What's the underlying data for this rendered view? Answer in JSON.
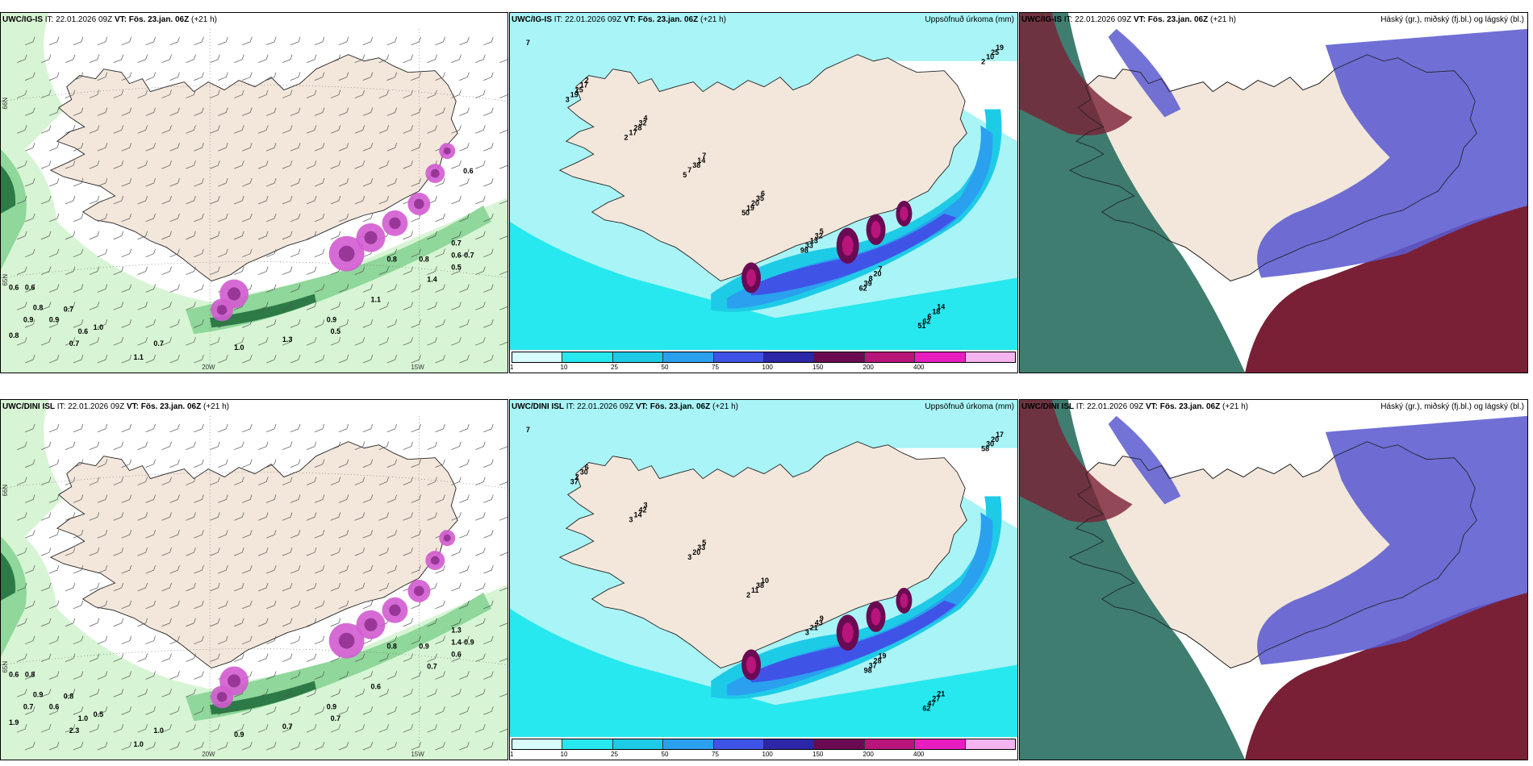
{
  "panels": {
    "r1c1": {
      "model": "UWC/IG-IS",
      "it": "IT: 22.01.2026 09Z",
      "vt_label": "VT:",
      "vt": "Fös. 23.jan. 06Z",
      "lead": "(+21 h)",
      "right": ""
    },
    "r1c2": {
      "model": "UWC/IG-IS",
      "it": "IT: 22.01.2026 09Z",
      "vt_label": "VT:",
      "vt": "Fös. 23.jan. 06Z",
      "lead": "(+21 h)",
      "right": "Uppsöfnuð úrkoma (mm)"
    },
    "r1c3": {
      "model": "UWC/IG-IS",
      "it": "IT: 22.01.2026 09Z",
      "vt_label": "VT:",
      "vt": "Fös. 23.jan. 06Z",
      "lead": "(+21 h)",
      "right": "Háský (gr.), miðský (fj.bl.) og lágský (bl.)"
    },
    "r2c1": {
      "model": "UWC/DINI ISL",
      "it": "IT: 22.01.2026 09Z",
      "vt_label": "VT:",
      "vt": "Fös. 23.jan. 06Z",
      "lead": "(+21 h)",
      "right": ""
    },
    "r2c2": {
      "model": "UWC/DINI ISL",
      "it": "IT: 22.01.2026 09Z",
      "vt_label": "VT:",
      "vt": "Fös. 23.jan. 06Z",
      "lead": "(+21 h)",
      "right": "Uppsöfnuð úrkoma (mm)"
    },
    "r2c3": {
      "model": "UWC/DINI ISL",
      "it": "IT: 22.01.2026 09Z",
      "vt_label": "VT:",
      "vt": "Fös. 23.jan. 06Z",
      "lead": "(+21 h)",
      "right": "Háský (gr.), miðský (fj.bl.) og lágský (bl.)"
    }
  },
  "axis_labels": {
    "lon1": "20W",
    "lon2": "15W",
    "lat1": "66N",
    "lat2": "65N"
  },
  "colorbar": {
    "ticks": [
      "1",
      "10",
      "25",
      "50",
      "75",
      "100",
      "150",
      "200",
      "400"
    ],
    "colors": [
      "#d8fbfb",
      "#27e8ee",
      "#1ecbe7",
      "#2aa0ef",
      "#3f54e6",
      "#2b27a6",
      "#6a0a52",
      "#b8157a",
      "#e81dc0",
      "#f4b4ef"
    ]
  },
  "colors": {
    "land": "#f3e7dc",
    "wind_green_light": "#d7f5d4",
    "wind_green_mid": "#8fd79a",
    "wind_green_dark": "#2d7a47",
    "snow_magenta": "#d35bd0",
    "precip_cyan": "#a9f4f6",
    "cloud_high": "#2a6f62",
    "cloud_mid": "#5b5bd0",
    "cloud_low": "#7a2036"
  },
  "wind_values": {
    "r1": [
      "0.6",
      "0.6",
      "0.8",
      "0.7",
      "0.9",
      "0.9",
      "0.6",
      "1.0",
      "0.8",
      "0.7",
      "1.1",
      "0.7",
      "0.5",
      "0.9",
      "0.7",
      "0.6",
      "0.7",
      "1.4",
      "1.1",
      "0.8",
      "1.0",
      "1.3",
      "0.5",
      "0.8",
      "0.6"
    ],
    "r2": [
      "0.6",
      "0.8",
      "0.9",
      "0.8",
      "0.7",
      "0.6",
      "1.0",
      "0.5",
      "1.9",
      "2.3",
      "1.0",
      "1.0",
      "0.7",
      "0.9",
      "1.3",
      "1.4",
      "0.9",
      "0.7",
      "0.6",
      "0.8",
      "0.9",
      "0.7",
      "0.6",
      "0.9"
    ]
  },
  "precip_values": {
    "r1": [
      "7",
      "2",
      "4",
      "7",
      "6",
      "5",
      "7",
      "14",
      "19",
      "17",
      "32",
      "14",
      "35",
      "32",
      "20",
      "18",
      "25",
      "25",
      "28",
      "38",
      "20",
      "13",
      "8",
      "6",
      "10",
      "19",
      "17",
      "7",
      "19",
      "33",
      "39",
      "62",
      "2",
      "3",
      "2",
      "5",
      "50",
      "98",
      "62",
      "51"
    ],
    "r2": [
      "7",
      "6",
      "3",
      "5",
      "10",
      "9",
      "19",
      "21",
      "17",
      "30",
      "42",
      "33",
      "38",
      "43",
      "28",
      "27",
      "20",
      "2",
      "14",
      "20",
      "11",
      "21",
      "37",
      "47",
      "30",
      "37",
      "3",
      "3",
      "2",
      "3",
      "98",
      "62",
      "58"
    ]
  }
}
